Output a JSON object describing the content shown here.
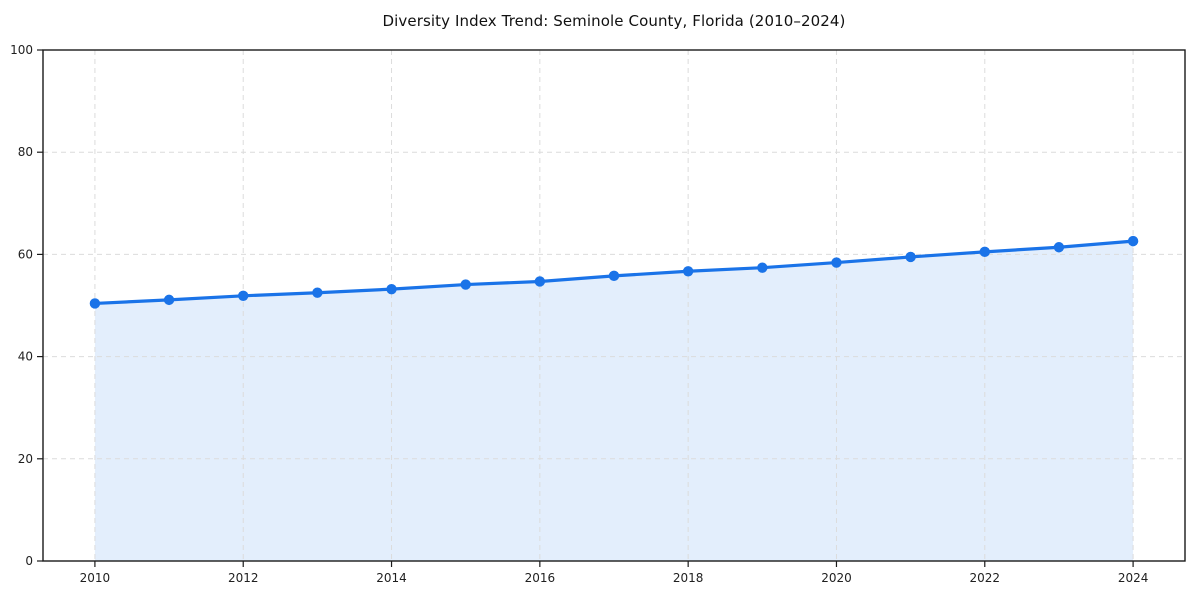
{
  "figure": {
    "background": "#ffffff"
  },
  "chart_data": {
    "type": "area",
    "title": "Diversity Index Trend: Seminole County, Florida (2010–2024)",
    "x": [
      2010,
      2011,
      2012,
      2013,
      2014,
      2015,
      2016,
      2017,
      2018,
      2019,
      2020,
      2021,
      2022,
      2023,
      2024
    ],
    "series": [
      {
        "name": "Diversity Index",
        "values": [
          50.4,
          51.1,
          51.9,
          52.5,
          53.2,
          54.1,
          54.7,
          55.8,
          56.7,
          57.4,
          58.4,
          59.5,
          60.5,
          61.4,
          62.6
        ]
      }
    ],
    "xlabel": "",
    "ylabel": "",
    "ylim": [
      0,
      100
    ],
    "xticks": [
      2010,
      2012,
      2014,
      2016,
      2018,
      2020,
      2022,
      2024
    ],
    "yticks": [
      0,
      20,
      40,
      60,
      80,
      100
    ],
    "grid": true,
    "grid_style": "dashed",
    "legend": false,
    "marker": "circle",
    "line_color": "#1a73e8",
    "fill_color": "#1a73e8",
    "fill_opacity": 0.12,
    "grid_color": "#dcdcdc",
    "axis_color": "#1a1a1a",
    "tick_label_color": "#1f1f1f"
  }
}
